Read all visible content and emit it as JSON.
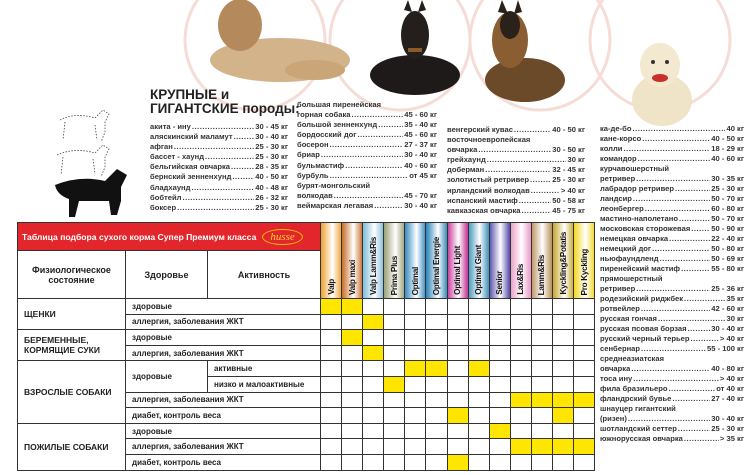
{
  "heading": {
    "line1": "КРУПНЫЕ и",
    "line2": "ГИГАНТСКИЕ породы:"
  },
  "breeds": {
    "col1": [
      {
        "name": "акита - ину",
        "weight": "30 - 45 кг"
      },
      {
        "name": "аляскинский маламут",
        "weight": "30 - 40 кг"
      },
      {
        "name": "афган",
        "weight": "25 - 30 кг"
      },
      {
        "name": "бассет - хаунд",
        "weight": "25 - 30 кг"
      },
      {
        "name": "бельгийская овчарка",
        "weight": "28 - 35 кг"
      },
      {
        "name": "бернский зенненхунд",
        "weight": "40 - 50 кг"
      },
      {
        "name": "бладхаунд",
        "weight": "40 - 48 кг"
      },
      {
        "name": "бобтейл",
        "weight": "26 - 32 кг"
      },
      {
        "name": "боксер",
        "weight": "25 - 30 кг"
      }
    ],
    "col2": [
      {
        "pre": "большая пиренейская",
        "name": "горная собака",
        "weight": "45 - 60 кг"
      },
      {
        "name": "большой зенненхунд",
        "weight": "35 - 40 кг"
      },
      {
        "name": "бордосский дог",
        "weight": "45 - 60 кг"
      },
      {
        "name": "босерон",
        "weight": "27 - 37 кг"
      },
      {
        "name": "бриар",
        "weight": "30 - 40 кг"
      },
      {
        "name": "бульмастиф",
        "weight": "40 - 60 кг"
      },
      {
        "name": "бурбуль",
        "weight": "от 45 кг"
      },
      {
        "pre": "бурят-монгольский",
        "name": "волкодав",
        "weight": "45 - 70 кг"
      },
      {
        "name": "веймарская легавая",
        "weight": "30 - 40 кг"
      }
    ],
    "col3": [
      {
        "name": "венгерский кувас",
        "weight": "40 - 50 кг"
      },
      {
        "pre": "восточноевропейская",
        "name": "овчарка",
        "weight": "30 - 50 кг"
      },
      {
        "name": "грейхаунд",
        "weight": "30 кг"
      },
      {
        "name": "доберман",
        "weight": "32 - 45 кг"
      },
      {
        "name": "золотистый ретривер",
        "weight": "25 - 30 кг"
      },
      {
        "name": "ирландский волкодав",
        "weight": "> 40 кг"
      },
      {
        "name": "испанский мастиф",
        "weight": "50 - 58 кг"
      },
      {
        "name": "кавказская овчарка",
        "weight": "45 - 75 кг"
      }
    ],
    "col4": [
      {
        "name": "ка-де-бо",
        "weight": "40 кг"
      },
      {
        "name": "кане-корсо",
        "weight": "40 - 50 кг"
      },
      {
        "name": "колли",
        "weight": "18 - 29 кг"
      },
      {
        "name": "командор",
        "weight": "40 - 60 кг"
      },
      {
        "pre": "курчавошерстный",
        "name": "ретривер",
        "weight": "30 - 35 кг"
      },
      {
        "name": "лабрадор ретривер",
        "weight": "25 - 30 кг"
      },
      {
        "name": "ландсир",
        "weight": "50 - 70 кг"
      },
      {
        "name": "леонбергер",
        "weight": "60 - 80 кг"
      },
      {
        "name": "мастино-наполетано",
        "weight": "50 - 70 кг"
      },
      {
        "name": "московская сторожевая",
        "weight": "50 - 90 кг"
      },
      {
        "name": "немецкая овчарка",
        "weight": "22 - 40 кг"
      },
      {
        "name": "немецкий дог",
        "weight": "50 - 80 кг"
      },
      {
        "name": "ньюфаундленд",
        "weight": "50 - 69 кг"
      },
      {
        "name": "пиренейский мастиф",
        "weight": "55 - 80 кг"
      },
      {
        "pre": "прямошерстный",
        "name": "ретривер",
        "weight": "25 - 36 кг"
      },
      {
        "name": "родезийский риджбек",
        "weight": "35 кг"
      },
      {
        "name": "ротвейлер",
        "weight": "42 - 60 кг"
      },
      {
        "name": "русская гончая",
        "weight": "30 кг"
      },
      {
        "name": "русская псовая борзая",
        "weight": "30 - 40 кг"
      },
      {
        "name": "русский черный терьер",
        "weight": "> 40 кг"
      },
      {
        "name": "сенбернар",
        "weight": "55 - 100 кг"
      },
      {
        "pre": "среднеазиатская",
        "name": "овчарка",
        "weight": "40 - 80 кг"
      },
      {
        "name": "тоса ину",
        "weight": "> 40 кг"
      },
      {
        "name": "фила бразильеро",
        "weight": "от 40 кг"
      },
      {
        "name": "фландрский бувье",
        "weight": "27 - 40 кг"
      },
      {
        "pre": "шнауцер гигантский",
        "name": "(ризен)",
        "weight": "30 - 40 кг"
      },
      {
        "name": "шотландский сеттер",
        "weight": "25 - 30 кг"
      },
      {
        "name": "южнорусская овчарка",
        "weight": "> 35 кг"
      }
    ]
  },
  "table": {
    "title": "Таблица подбора сухого корма Супер Премиум класса",
    "logo": "husse",
    "headers": {
      "state": "Физиологическое состояние",
      "health": "Здоровье",
      "activity": "Активность"
    },
    "products": [
      {
        "name": "Valp",
        "color": "#f0a53a"
      },
      {
        "name": "Valp maxi",
        "color": "#c9732f"
      },
      {
        "name": "Valp Lamm&Ris",
        "color": "#86bedc"
      },
      {
        "name": "Prima Plus",
        "color": "#9ea37a"
      },
      {
        "name": "Optimal",
        "color": "#3d8fc4"
      },
      {
        "name": "Optimal Energie",
        "color": "#2f86b8"
      },
      {
        "name": "Optimal Light",
        "color": "#c83a98"
      },
      {
        "name": "Optimal Giant",
        "color": "#4496bd"
      },
      {
        "name": "Senior",
        "color": "#5a52ac"
      },
      {
        "name": "Lax&Ris",
        "color": "#ec9cc8"
      },
      {
        "name": "Lamm&Ris",
        "color": "#bb9463"
      },
      {
        "name": "Kyckling&Potatis",
        "color": "#c9aa35"
      },
      {
        "name": "Pro Kyckling",
        "color": "#f3d829"
      }
    ],
    "highlight_color": "#ffe600",
    "groups": [
      {
        "state": "ЩЕНКИ",
        "rows": [
          {
            "health": "здоровые",
            "activity": "",
            "marks": [
              1,
              2
            ]
          },
          {
            "health": "аллергия, заболевания ЖКТ",
            "activity": "",
            "marks": [
              3
            ]
          }
        ]
      },
      {
        "state": "БЕРЕМЕННЫЕ, КОРМЯЩИЕ СУКИ",
        "rows": [
          {
            "health": "здоровые",
            "activity": "",
            "marks": [
              2
            ]
          },
          {
            "health": "аллергия, заболевания ЖКТ",
            "activity": "",
            "marks": [
              3
            ]
          }
        ]
      },
      {
        "state": "ВЗРОСЛЫЕ СОБАКИ",
        "rows": [
          {
            "health": "здоровые",
            "activity": "активные",
            "marks": [
              5,
              6,
              8
            ]
          },
          {
            "health": "",
            "activity": "низко и малоактивные",
            "marks": [
              4
            ]
          },
          {
            "health": "аллергия, заболевания ЖКТ",
            "activity": "",
            "marks": [
              10,
              11,
              12,
              13
            ]
          },
          {
            "health": "диабет, контроль веса",
            "activity": "",
            "marks": [
              7,
              12
            ]
          }
        ]
      },
      {
        "state": "ПОЖИЛЫЕ СОБАКИ",
        "rows": [
          {
            "health": "здоровые",
            "activity": "",
            "marks": [
              9
            ]
          },
          {
            "health": "аллергия, заболевания ЖКТ",
            "activity": "",
            "marks": [
              10,
              11,
              12,
              13
            ]
          },
          {
            "health": "диабет, контроль веса",
            "activity": "",
            "marks": [
              7
            ]
          }
        ]
      }
    ]
  }
}
